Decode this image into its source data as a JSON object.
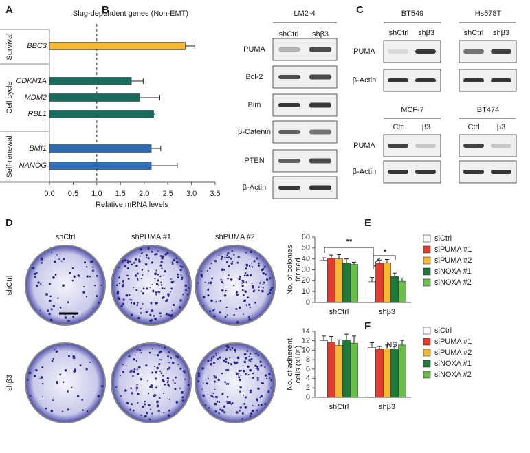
{
  "panel_labels": [
    "A",
    "B",
    "C",
    "D",
    "E",
    "F"
  ],
  "chart_data": [
    {
      "type": "hbar",
      "title": "Slug-dependent genes (Non-EMT)",
      "xlabel": "Relative mRNA levels",
      "categories": [
        "BBC3",
        "CDKN1A",
        "MDM2",
        "RBL1",
        "BMI1",
        "NANOG"
      ],
      "values": [
        2.87,
        1.73,
        1.91,
        2.2,
        2.15,
        2.15
      ],
      "errors": [
        0.2,
        0.25,
        0.42,
        0.03,
        0.2,
        0.55
      ],
      "colors": [
        "#f5b82e",
        "#1a6b5e",
        "#1a6b5e",
        "#1a6b5e",
        "#2e6db4",
        "#2e6db4"
      ],
      "groups": [
        "Survival",
        "Cell cycle",
        "Self-renewal"
      ],
      "reference_line": 1,
      "xlim": [
        0,
        3.5
      ],
      "xticks": [
        {
          "value": 0,
          "label": "0.0"
        },
        0.5,
        {
          "value": 1,
          "label": "1.0"
        },
        1.5,
        {
          "value": 2,
          "label": "2.0"
        },
        2.5,
        {
          "value": 3,
          "label": "3.0"
        },
        3.5
      ]
    },
    {
      "type": "groupbar",
      "ylabel": [
        "No. of colonies",
        "formed"
      ],
      "categories": [
        "shCtrl",
        "shβ3"
      ],
      "series": [
        {
          "name": "siCtrl",
          "color": "#ffffff",
          "values": [
            39,
            19
          ],
          "errors": [
            2,
            4
          ]
        },
        {
          "name": "siPUMA #1",
          "color": "#e8392a",
          "values": [
            40.5,
            36
          ],
          "errors": [
            3,
            3
          ]
        },
        {
          "name": "siPUMA #2",
          "color": "#f5b82e",
          "values": [
            40,
            36.5
          ],
          "errors": [
            4,
            3
          ]
        },
        {
          "name": "siNOXA #1",
          "color": "#1e7a3a",
          "values": [
            36,
            24
          ],
          "errors": [
            4,
            3
          ]
        },
        {
          "name": "siNOXA #2",
          "color": "#6abf4b",
          "values": [
            35,
            19.5
          ],
          "errors": [
            2,
            3
          ]
        }
      ],
      "annotations": [
        "**",
        "*",
        "*"
      ],
      "ylim": [
        0,
        60
      ],
      "yticks": [
        0,
        10,
        20,
        30,
        40,
        50,
        60
      ]
    },
    {
      "type": "groupbar",
      "ylabel": [
        "No. of adherent",
        "cells (x10⁵)"
      ],
      "categories": [
        "shCtrl",
        "shβ3"
      ],
      "series": [
        {
          "name": "siCtrl",
          "color": "#ffffff",
          "values": [
            12,
            10.6
          ],
          "errors": [
            1,
            1
          ]
        },
        {
          "name": "siPUMA #1",
          "color": "#e8392a",
          "values": [
            11.7,
            10.2
          ],
          "errors": [
            1.2,
            0.6
          ]
        },
        {
          "name": "siPUMA #2",
          "color": "#f5b82e",
          "values": [
            11,
            10.3
          ],
          "errors": [
            1.2,
            0.8
          ]
        },
        {
          "name": "siNOXA #1",
          "color": "#1e7a3a",
          "values": [
            12.2,
            10.3
          ],
          "errors": [
            1.2,
            1
          ]
        },
        {
          "name": "siNOXA #2",
          "color": "#6abf4b",
          "values": [
            11.5,
            11.1
          ],
          "errors": [
            1.5,
            1
          ]
        }
      ],
      "annotations": [
        "NS"
      ],
      "ylim": [
        0,
        14
      ],
      "yticks": [
        0,
        2,
        4,
        6,
        8,
        10,
        12,
        14
      ]
    }
  ],
  "blots": {
    "b": {
      "title": "LM2-4",
      "columns": [
        "shCtrl",
        "shβ3"
      ],
      "rows": [
        "PUMA",
        "Bcl-2",
        "Bim",
        "β-Catenin",
        "PTEN",
        "β-Actin"
      ]
    },
    "c": [
      {
        "title": "BT549",
        "columns": [
          "shCtrl",
          "shβ3"
        ]
      },
      {
        "title": "Hs578T",
        "columns": [
          "shCtrl",
          "shβ3"
        ]
      },
      {
        "title": "MCF-7",
        "columns": [
          "Ctrl",
          "β3"
        ]
      },
      {
        "title": "BT474",
        "columns": [
          "Ctrl",
          "β3"
        ]
      }
    ],
    "c_rows": [
      "PUMA",
      "β-Actin",
      "PUMA",
      "β-Actin"
    ]
  },
  "colonies": {
    "columns": [
      "shCtrl",
      "shPUMA #1",
      "shPUMA #2"
    ],
    "rows": [
      "shCtrl",
      "shβ3"
    ]
  }
}
